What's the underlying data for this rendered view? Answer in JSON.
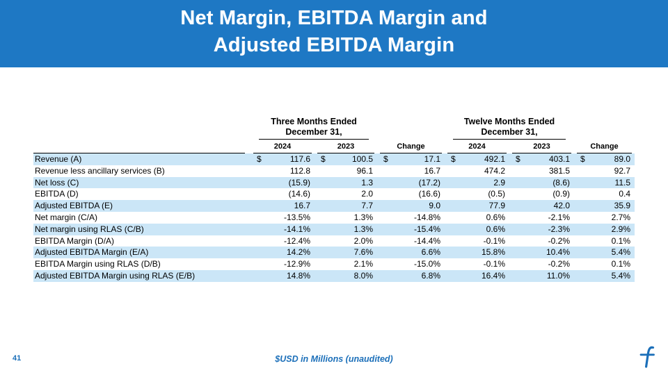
{
  "slide": {
    "title_lines": [
      "Net Margin, EBITDA Margin and",
      "Adjusted EBITDA Margin"
    ],
    "footer": {
      "page_number": "41",
      "footnote": "$USD in Millions (unaudited)"
    },
    "logo_icon": "stylized-f-logo"
  },
  "table": {
    "period_groups": [
      {
        "line1": "Three Months Ended",
        "line2": "December 31,"
      },
      {
        "line1": "Twelve Months Ended",
        "line2": "December 31,"
      }
    ],
    "column_headers": [
      "2024",
      "2023",
      "Change",
      "2024",
      "2023",
      "Change"
    ],
    "currency_symbol": "$",
    "rows": [
      {
        "label": "Revenue (A)",
        "dollar": true,
        "values": [
          "117.6",
          "100.5",
          "17.1",
          "492.1",
          "403.1",
          "89.0"
        ]
      },
      {
        "label": "Revenue less ancillary services (B)",
        "values": [
          "112.8",
          "96.1",
          "16.7",
          "474.2",
          "381.5",
          "92.7"
        ]
      },
      {
        "label": "Net loss (C)",
        "values": [
          "(15.9)",
          "1.3",
          "(17.2)",
          "2.9",
          "(8.6)",
          "11.5"
        ]
      },
      {
        "label": "EBITDA (D)",
        "values": [
          "(14.6)",
          "2.0",
          "(16.6)",
          "(0.5)",
          "(0.9)",
          "0.4"
        ]
      },
      {
        "label": "Adjusted EBITDA (E)",
        "values": [
          "16.7",
          "7.7",
          "9.0",
          "77.9",
          "42.0",
          "35.9"
        ]
      },
      {
        "label": "Net margin (C/A)",
        "values": [
          "-13.5%",
          "1.3%",
          "-14.8%",
          "0.6%",
          "-2.1%",
          "2.7%"
        ]
      },
      {
        "label": "Net margin using RLAS (C/B)",
        "values": [
          "-14.1%",
          "1.3%",
          "-15.4%",
          "0.6%",
          "-2.3%",
          "2.9%"
        ]
      },
      {
        "label": "EBITDA Margin (D/A)",
        "values": [
          "-12.4%",
          "2.0%",
          "-14.4%",
          "-0.1%",
          "-0.2%",
          "0.1%"
        ]
      },
      {
        "label": "Adjusted EBITDA Margin (E/A)",
        "values": [
          "14.2%",
          "7.6%",
          "6.6%",
          "15.8%",
          "10.4%",
          "5.4%"
        ]
      },
      {
        "label": "EBITDA Margin using RLAS (D/B)",
        "values": [
          "-12.9%",
          "2.1%",
          "-15.0%",
          "-0.1%",
          "-0.2%",
          "0.1%"
        ]
      },
      {
        "label": "Adjusted EBITDA Margin using RLAS (E/B)",
        "values": [
          "14.8%",
          "8.0%",
          "6.8%",
          "16.4%",
          "11.0%",
          "5.4%"
        ]
      }
    ]
  },
  "colors": {
    "banner_blue": "#1E78C4",
    "row_highlight": "#CBE6F7",
    "accent_blue": "#1B6FB9",
    "text": "#000000"
  }
}
